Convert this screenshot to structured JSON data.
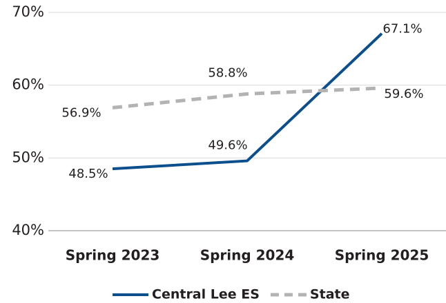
{
  "chart_data": {
    "type": "line",
    "categories": [
      "Spring 2023",
      "Spring 2024",
      "Spring 2025"
    ],
    "series": [
      {
        "name": "Central Lee ES",
        "color": "#0b4f8c",
        "dash": false,
        "values": [
          48.5,
          49.6,
          67.1
        ],
        "value_labels": [
          "48.5%",
          "49.6%",
          "67.1%"
        ]
      },
      {
        "name": "State",
        "color": "#b3b3b3",
        "dash": true,
        "values": [
          56.9,
          58.8,
          59.6
        ],
        "value_labels": [
          "56.9%",
          "58.8%",
          "59.6%"
        ]
      }
    ],
    "ylim": [
      40,
      70
    ],
    "yticks": [
      {
        "value": 40,
        "label": "40%"
      },
      {
        "value": 50,
        "label": "50%"
      },
      {
        "value": 60,
        "label": "60%"
      },
      {
        "value": 70,
        "label": "70%"
      }
    ],
    "grid": true,
    "legend": "bottom"
  }
}
